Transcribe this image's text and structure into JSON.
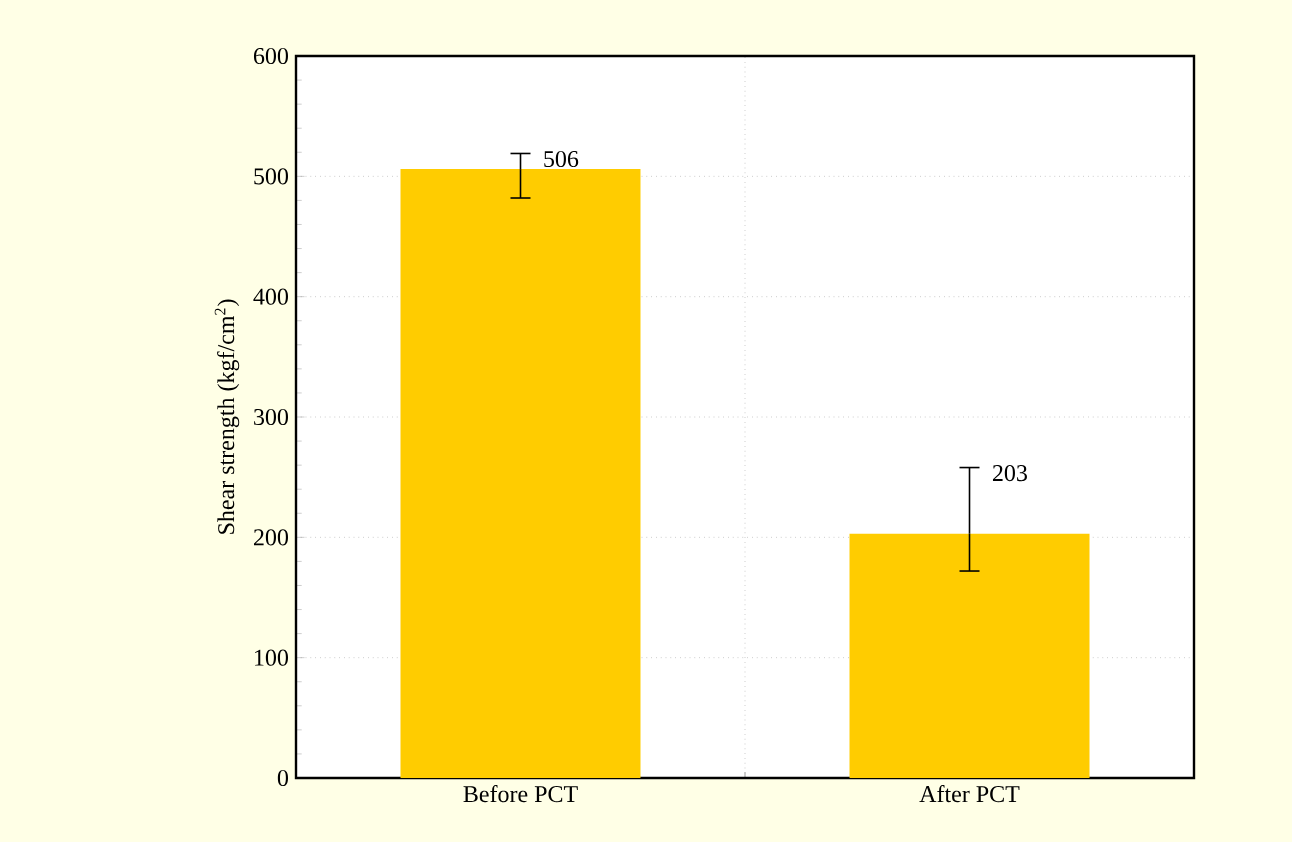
{
  "chart_data": {
    "type": "bar",
    "ylabel": "Shear strength (kgf/cm$^{2}$)",
    "categories": [
      "Before PCT",
      "After PCT"
    ],
    "values": [
      506,
      203
    ],
    "errors": [
      [
        482,
        519
      ],
      [
        172,
        258
      ]
    ],
    "color": "#ffcc00",
    "ylim": [
      0,
      600
    ],
    "yticks": [
      0,
      100,
      200,
      300,
      400,
      500,
      600
    ],
    "grid": true,
    "data_labels": true
  }
}
